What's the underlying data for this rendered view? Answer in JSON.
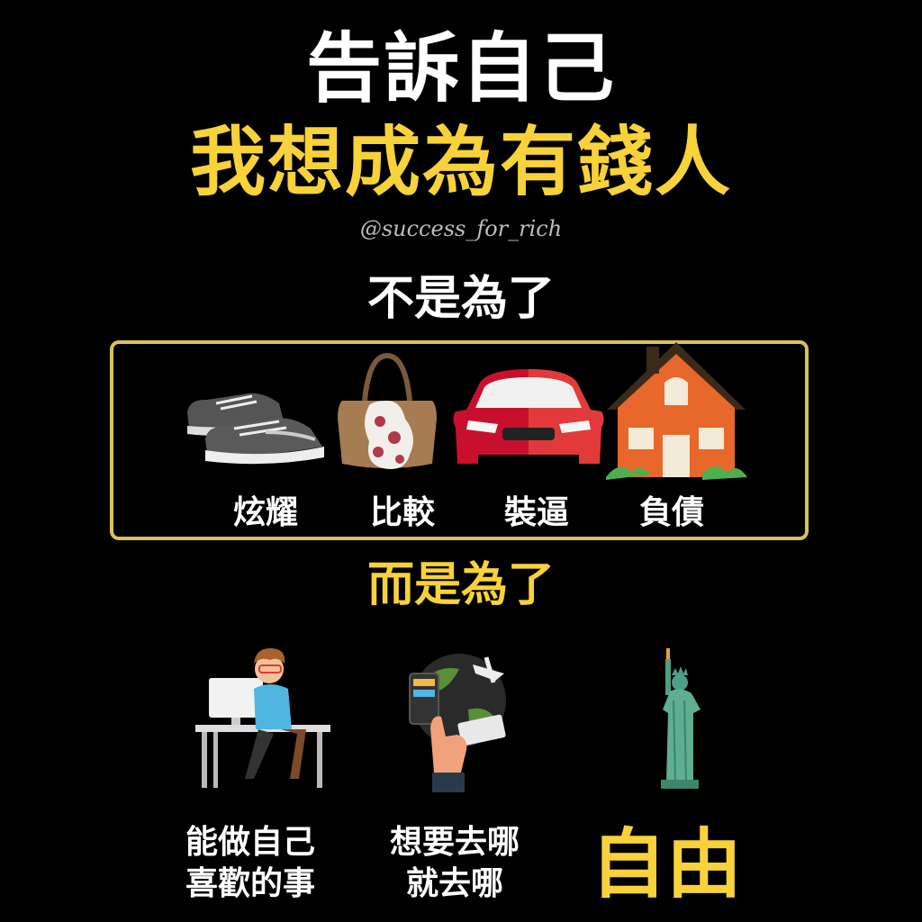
{
  "header": {
    "title_line1": "告訴自己",
    "title_line2": "我想成為有錢人",
    "handle": "@success_for_rich"
  },
  "not_for": {
    "heading": "不是為了",
    "items": [
      {
        "label": "炫耀",
        "icon": "sneakers-icon"
      },
      {
        "label": "比較",
        "icon": "handbag-icon"
      },
      {
        "label": "裝逼",
        "icon": "car-icon"
      },
      {
        "label": "負債",
        "icon": "house-icon"
      }
    ]
  },
  "but_for": {
    "heading": "而是為了",
    "items": [
      {
        "line1": "能做自己",
        "line2": "喜歡的事",
        "icon": "person-at-computer-icon"
      },
      {
        "line1": "想要去哪",
        "line2": "就去哪",
        "icon": "globe-travel-icon"
      },
      {
        "label": "自由",
        "icon": "statue-of-liberty-icon"
      }
    ]
  },
  "colors": {
    "background": "#000000",
    "accent_yellow": "#f7d23a",
    "box_border": "#d8c25a"
  }
}
